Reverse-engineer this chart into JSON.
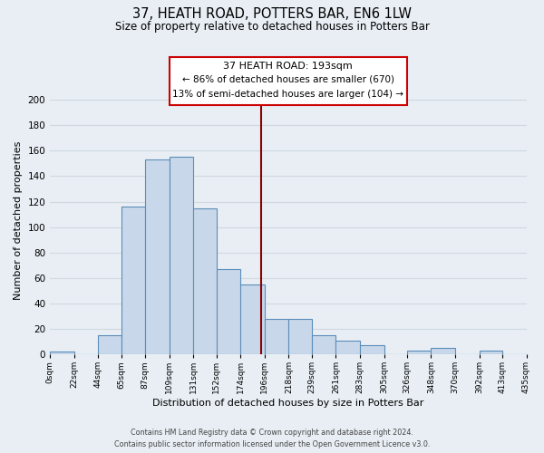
{
  "title": "37, HEATH ROAD, POTTERS BAR, EN6 1LW",
  "subtitle": "Size of property relative to detached houses in Potters Bar",
  "xlabel": "Distribution of detached houses by size in Potters Bar",
  "ylabel": "Number of detached properties",
  "bar_color": "#c8d8ea",
  "bar_edge_color": "#5b8db8",
  "bin_edges": [
    0,
    22,
    44,
    65,
    87,
    109,
    131,
    152,
    174,
    196,
    218,
    239,
    261,
    283,
    305,
    326,
    348,
    370,
    392,
    413,
    435
  ],
  "bin_labels": [
    "0sqm",
    "22sqm",
    "44sqm",
    "65sqm",
    "87sqm",
    "109sqm",
    "131sqm",
    "152sqm",
    "174sqm",
    "196sqm",
    "218sqm",
    "239sqm",
    "261sqm",
    "283sqm",
    "305sqm",
    "326sqm",
    "348sqm",
    "370sqm",
    "392sqm",
    "413sqm",
    "435sqm"
  ],
  "bar_heights": [
    2,
    0,
    15,
    116,
    153,
    155,
    115,
    67,
    55,
    28,
    28,
    15,
    11,
    7,
    0,
    3,
    5,
    0,
    3,
    0
  ],
  "ylim": [
    0,
    210
  ],
  "yticks": [
    0,
    20,
    40,
    60,
    80,
    100,
    120,
    140,
    160,
    180,
    200
  ],
  "reference_line_x": 193,
  "reference_line_label": "37 HEATH ROAD: 193sqm",
  "annotation_line1": "← 86% of detached houses are smaller (670)",
  "annotation_line2": "13% of semi-detached houses are larger (104) →",
  "footer_line1": "Contains HM Land Registry data © Crown copyright and database right 2024.",
  "footer_line2": "Contains public sector information licensed under the Open Government Licence v3.0.",
  "background_color": "#e8eef4",
  "grid_color": "#d0d8e0",
  "plot_bg_color": "#e8eef4"
}
